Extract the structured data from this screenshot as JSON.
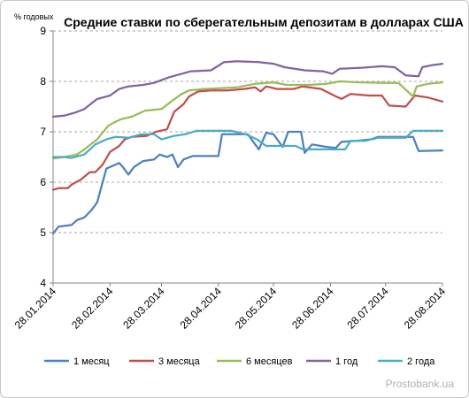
{
  "chart_data": {
    "type": "line",
    "title": "Средние ставки по  сберегательным депозитам в долларах США",
    "ylabel": "% годовых",
    "ylim": [
      4,
      9
    ],
    "yticks": [
      4,
      5,
      6,
      7,
      8,
      9
    ],
    "xlim": [
      "2014-01-28",
      "2014-08-28"
    ],
    "xticks": [
      "28.01.2014",
      "28.02.2014",
      "28.03.2014",
      "28.04.2014",
      "28.05.2014",
      "28.06.2014",
      "28.07.2014",
      "28.08.2014"
    ],
    "grid": "horizontal dashed",
    "legend_position": "bottom",
    "series": [
      {
        "name": "1 месяц",
        "color": "#4f81bd",
        "points": [
          [
            "2014-01-28",
            4.98
          ],
          [
            "2014-01-31",
            5.12
          ],
          [
            "2014-02-07",
            5.15
          ],
          [
            "2014-02-10",
            5.25
          ],
          [
            "2014-02-14",
            5.3
          ],
          [
            "2014-02-18",
            5.45
          ],
          [
            "2014-02-21",
            5.6
          ],
          [
            "2014-02-26",
            6.27
          ],
          [
            "2014-03-03",
            6.35
          ],
          [
            "2014-03-05",
            6.38
          ],
          [
            "2014-03-07",
            6.3
          ],
          [
            "2014-03-10",
            6.15
          ],
          [
            "2014-03-13",
            6.3
          ],
          [
            "2014-03-18",
            6.42
          ],
          [
            "2014-03-24",
            6.45
          ],
          [
            "2014-03-27",
            6.55
          ],
          [
            "2014-03-31",
            6.5
          ],
          [
            "2014-04-03",
            6.55
          ],
          [
            "2014-04-06",
            6.3
          ],
          [
            "2014-04-09",
            6.45
          ],
          [
            "2014-04-14",
            6.52
          ],
          [
            "2014-04-28",
            6.52
          ],
          [
            "2014-04-30",
            6.95
          ],
          [
            "2014-05-14",
            6.95
          ],
          [
            "2014-05-20",
            6.65
          ],
          [
            "2014-05-24",
            6.98
          ],
          [
            "2014-05-28",
            6.95
          ],
          [
            "2014-06-02",
            6.7
          ],
          [
            "2014-06-05",
            7.0
          ],
          [
            "2014-06-12",
            7.0
          ],
          [
            "2014-06-14",
            6.58
          ],
          [
            "2014-06-18",
            6.75
          ],
          [
            "2014-06-26",
            6.7
          ],
          [
            "2014-07-01",
            6.68
          ],
          [
            "2014-07-04",
            6.8
          ],
          [
            "2014-07-12",
            6.82
          ],
          [
            "2014-07-20",
            6.85
          ],
          [
            "2014-07-24",
            6.9
          ],
          [
            "2014-08-12",
            6.9
          ],
          [
            "2014-08-15",
            6.62
          ],
          [
            "2014-08-28",
            6.63
          ]
        ]
      },
      {
        "name": "3 месяца",
        "color": "#c0504d",
        "points": [
          [
            "2014-01-28",
            5.85
          ],
          [
            "2014-01-31",
            5.88
          ],
          [
            "2014-02-05",
            5.88
          ],
          [
            "2014-02-07",
            5.95
          ],
          [
            "2014-02-12",
            6.05
          ],
          [
            "2014-02-17",
            6.2
          ],
          [
            "2014-02-20",
            6.2
          ],
          [
            "2014-02-24",
            6.35
          ],
          [
            "2014-02-28",
            6.6
          ],
          [
            "2014-03-05",
            6.72
          ],
          [
            "2014-03-08",
            6.85
          ],
          [
            "2014-03-12",
            6.9
          ],
          [
            "2014-03-20",
            6.92
          ],
          [
            "2014-03-25",
            7.0
          ],
          [
            "2014-03-31",
            7.05
          ],
          [
            "2014-04-04",
            7.4
          ],
          [
            "2014-04-09",
            7.55
          ],
          [
            "2014-04-12",
            7.7
          ],
          [
            "2014-04-17",
            7.8
          ],
          [
            "2014-04-24",
            7.82
          ],
          [
            "2014-05-03",
            7.82
          ],
          [
            "2014-05-12",
            7.85
          ],
          [
            "2014-05-18",
            7.88
          ],
          [
            "2014-05-21",
            7.8
          ],
          [
            "2014-05-24",
            7.9
          ],
          [
            "2014-05-30",
            7.85
          ],
          [
            "2014-06-08",
            7.85
          ],
          [
            "2014-06-13",
            7.9
          ],
          [
            "2014-06-23",
            7.85
          ],
          [
            "2014-06-30",
            7.72
          ],
          [
            "2014-07-04",
            7.65
          ],
          [
            "2014-07-09",
            7.75
          ],
          [
            "2014-07-19",
            7.72
          ],
          [
            "2014-07-26",
            7.72
          ],
          [
            "2014-07-30",
            7.52
          ],
          [
            "2014-08-08",
            7.5
          ],
          [
            "2014-08-13",
            7.72
          ],
          [
            "2014-08-20",
            7.68
          ],
          [
            "2014-08-28",
            7.6
          ]
        ]
      },
      {
        "name": "6 месяцев",
        "color": "#9bbb59",
        "points": [
          [
            "2014-01-28",
            6.47
          ],
          [
            "2014-02-03",
            6.5
          ],
          [
            "2014-02-10",
            6.55
          ],
          [
            "2014-02-14",
            6.65
          ],
          [
            "2014-02-21",
            6.85
          ],
          [
            "2014-02-27",
            7.12
          ],
          [
            "2014-03-03",
            7.2
          ],
          [
            "2014-03-06",
            7.25
          ],
          [
            "2014-03-12",
            7.3
          ],
          [
            "2014-03-19",
            7.42
          ],
          [
            "2014-03-28",
            7.45
          ],
          [
            "2014-04-03",
            7.62
          ],
          [
            "2014-04-08",
            7.75
          ],
          [
            "2014-04-12",
            7.82
          ],
          [
            "2014-04-20",
            7.85
          ],
          [
            "2014-05-08",
            7.88
          ],
          [
            "2014-05-18",
            7.95
          ],
          [
            "2014-05-28",
            7.98
          ],
          [
            "2014-06-04",
            7.93
          ],
          [
            "2014-06-16",
            7.93
          ],
          [
            "2014-06-26",
            7.95
          ],
          [
            "2014-07-03",
            8.0
          ],
          [
            "2014-07-14",
            7.98
          ],
          [
            "2014-07-28",
            7.97
          ],
          [
            "2014-08-04",
            7.97
          ],
          [
            "2014-08-12",
            7.7
          ],
          [
            "2014-08-14",
            7.9
          ],
          [
            "2014-08-20",
            7.95
          ],
          [
            "2014-08-28",
            7.98
          ]
        ]
      },
      {
        "name": "1 год",
        "color": "#8064a2",
        "points": [
          [
            "2014-01-28",
            7.3
          ],
          [
            "2014-02-03",
            7.32
          ],
          [
            "2014-02-09",
            7.38
          ],
          [
            "2014-02-14",
            7.45
          ],
          [
            "2014-02-21",
            7.65
          ],
          [
            "2014-02-28",
            7.72
          ],
          [
            "2014-03-05",
            7.85
          ],
          [
            "2014-03-10",
            7.9
          ],
          [
            "2014-03-18",
            7.93
          ],
          [
            "2014-03-24",
            7.97
          ],
          [
            "2014-04-01",
            8.08
          ],
          [
            "2014-04-08",
            8.15
          ],
          [
            "2014-04-13",
            8.2
          ],
          [
            "2014-04-24",
            8.22
          ],
          [
            "2014-05-01",
            8.38
          ],
          [
            "2014-05-08",
            8.4
          ],
          [
            "2014-05-20",
            8.38
          ],
          [
            "2014-05-28",
            8.35
          ],
          [
            "2014-06-03",
            8.28
          ],
          [
            "2014-06-14",
            8.22
          ],
          [
            "2014-06-24",
            8.2
          ],
          [
            "2014-06-29",
            8.15
          ],
          [
            "2014-07-03",
            8.25
          ],
          [
            "2014-07-15",
            8.27
          ],
          [
            "2014-07-26",
            8.3
          ],
          [
            "2014-08-02",
            8.28
          ],
          [
            "2014-08-08",
            8.12
          ],
          [
            "2014-08-15",
            8.1
          ],
          [
            "2014-08-17",
            8.28
          ],
          [
            "2014-08-22",
            8.32
          ],
          [
            "2014-08-28",
            8.35
          ]
        ]
      },
      {
        "name": "2 года",
        "color": "#4bacc6",
        "points": [
          [
            "2014-01-28",
            6.5
          ],
          [
            "2014-02-03",
            6.5
          ],
          [
            "2014-02-07",
            6.48
          ],
          [
            "2014-02-14",
            6.55
          ],
          [
            "2014-02-20",
            6.75
          ],
          [
            "2014-02-26",
            6.85
          ],
          [
            "2014-03-03",
            6.9
          ],
          [
            "2014-03-10",
            6.88
          ],
          [
            "2014-03-17",
            6.95
          ],
          [
            "2014-03-24",
            6.95
          ],
          [
            "2014-03-28",
            6.85
          ],
          [
            "2014-04-04",
            6.92
          ],
          [
            "2014-04-10",
            6.95
          ],
          [
            "2014-04-16",
            7.02
          ],
          [
            "2014-04-25",
            7.02
          ],
          [
            "2014-05-05",
            7.02
          ],
          [
            "2014-05-13",
            6.95
          ],
          [
            "2014-05-19",
            6.85
          ],
          [
            "2014-05-24",
            6.72
          ],
          [
            "2014-06-09",
            6.72
          ],
          [
            "2014-06-13",
            6.65
          ],
          [
            "2014-06-24",
            6.65
          ],
          [
            "2014-07-06",
            6.65
          ],
          [
            "2014-07-09",
            6.82
          ],
          [
            "2014-07-17",
            6.82
          ],
          [
            "2014-07-24",
            6.88
          ],
          [
            "2014-08-08",
            6.88
          ],
          [
            "2014-08-12",
            7.02
          ],
          [
            "2014-08-28",
            7.02
          ]
        ]
      }
    ]
  },
  "watermark": "Prostobank.ua"
}
